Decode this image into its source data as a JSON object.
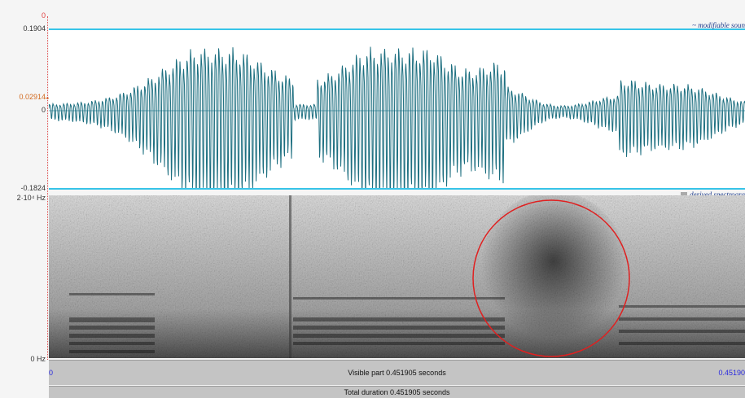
{
  "waveform": {
    "top_marker": "0",
    "y_max": "0.1904",
    "y_cursor": "0.02914",
    "y_zero": "0",
    "y_min": "-0.1824",
    "tier_label": "~ modifiable soun"
  },
  "spectrogram": {
    "y_max": "2·10⁴ Hz",
    "y_min": "0 Hz",
    "tier_label": "derived spectrogra"
  },
  "timebar": {
    "start": "0",
    "visible": "Visible part 0.451905 seconds",
    "end": "0.45190",
    "total": "Total duration 0.451905 seconds"
  },
  "colors": {
    "wave": "#1d6f80",
    "guide": "#37c4e8",
    "cursor": "#d2691e",
    "highlight_circle": "#e02020"
  }
}
